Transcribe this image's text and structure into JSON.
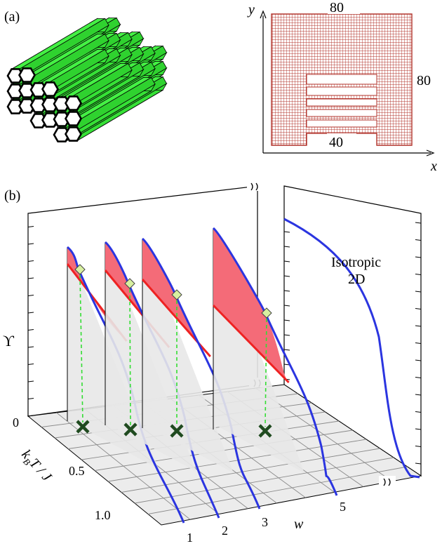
{
  "panel_a": {
    "label": "(a)",
    "schematic": {
      "axis_y": "y",
      "axis_x": "x",
      "top_dim": "80",
      "side_dim": "80",
      "bottom_dim": "40"
    }
  },
  "panel_b": {
    "label": "(b)",
    "ylabel": "ϒ",
    "ytick": "0",
    "xlabel": "k",
    "xlabel_sub": "B",
    "xlabel_rest": "T / J",
    "xticks": [
      "0.5",
      "1.0"
    ],
    "wlabel": "w",
    "wticks": [
      "1",
      "2",
      "3",
      "5"
    ],
    "annotation_line1": "Isotropic",
    "annotation_line2": "2D"
  },
  "colors": {
    "hex_fill": "#33ee33",
    "grid_red": "#b03028",
    "curve_blue": "#2b35e0",
    "fill_pink": "#f46b78",
    "line_red": "#ee2222",
    "dash_green": "#33dd33",
    "marker_green": "#1f4a1f",
    "diamond": "#d8f0a0"
  },
  "icons": {
    "honeycomb": "hexagonal-prism-bundle-icon",
    "cross": "cross-marker-icon",
    "break": "axis-break-icon"
  }
}
